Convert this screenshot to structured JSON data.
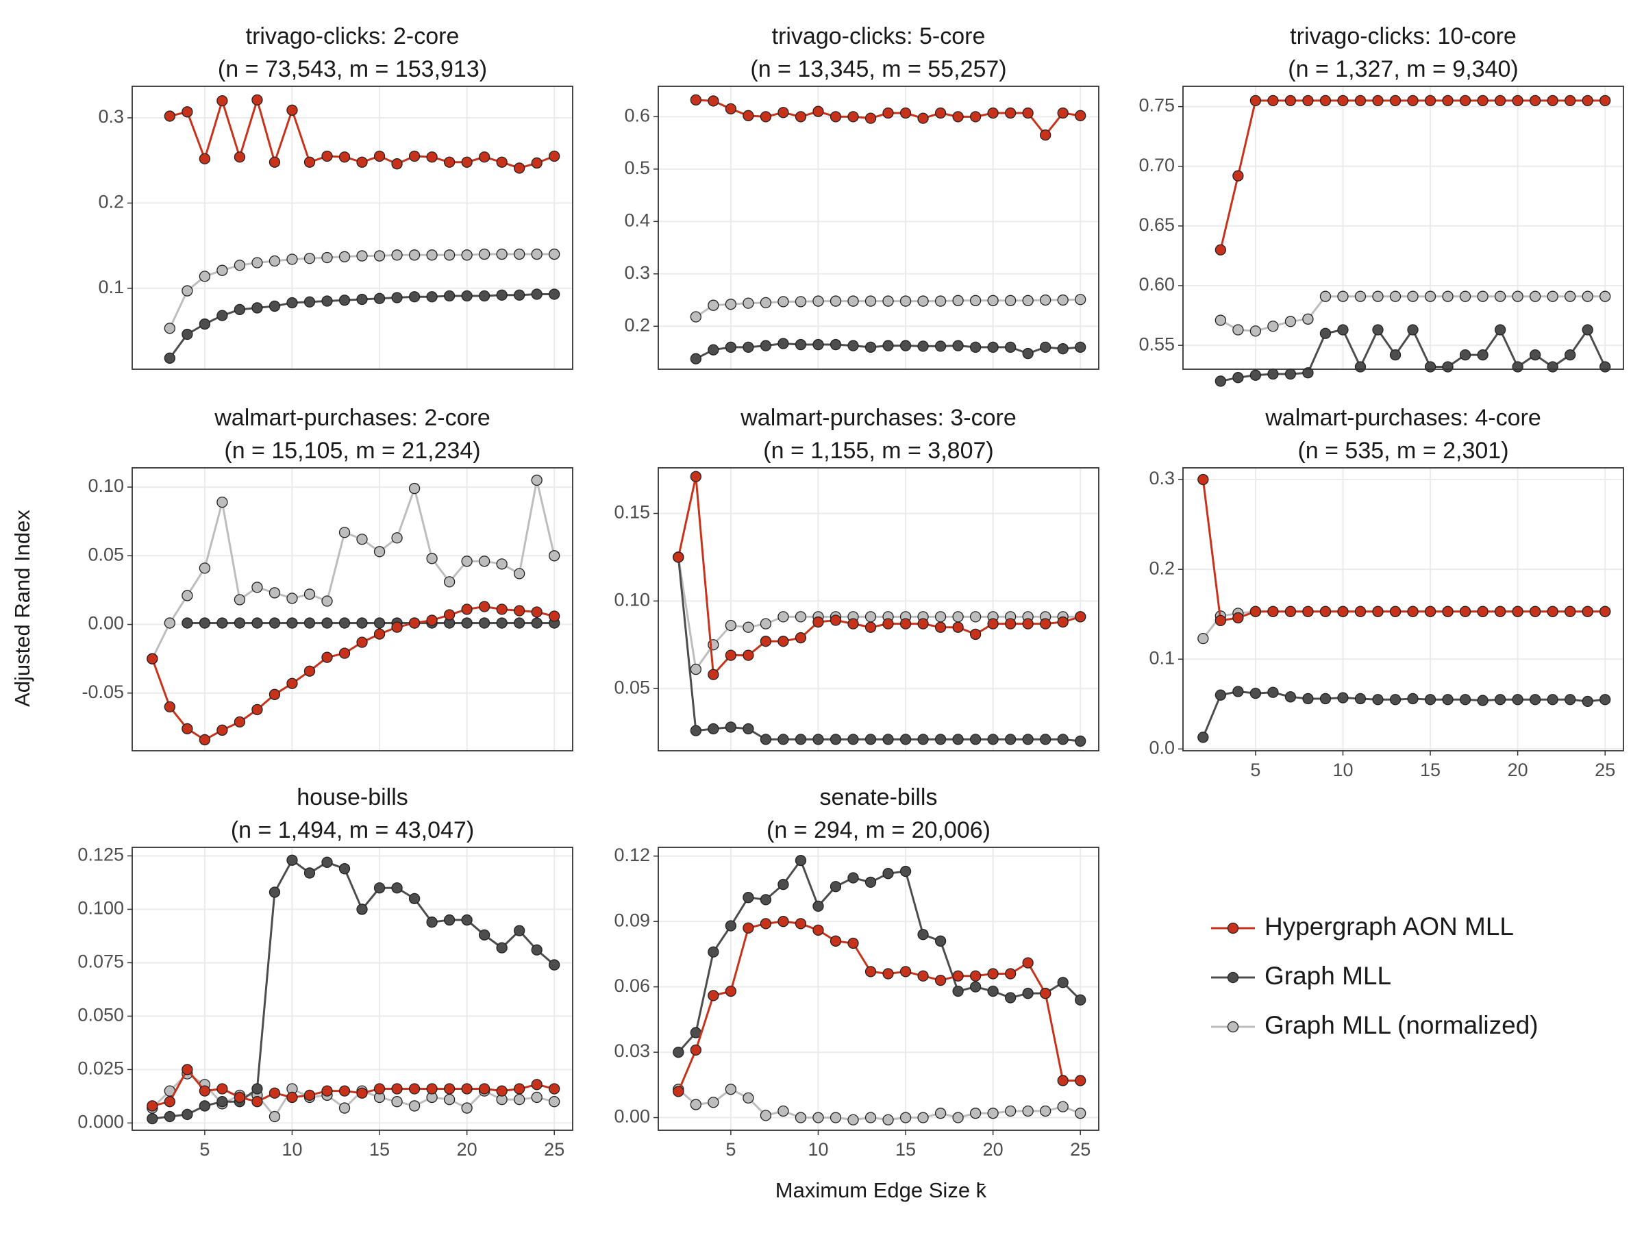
{
  "y_label": "Adjusted Rand Index",
  "x_label": "Maximum Edge Size k̄",
  "legend": [
    {
      "name": "Hypergraph AON MLL",
      "color": "#c8321a"
    },
    {
      "name": "Graph MLL",
      "color": "#4d4d4d"
    },
    {
      "name": "Graph MLL (normalized)",
      "color": "#bdbdbd"
    }
  ],
  "chart_data": [
    {
      "type": "line",
      "title": "trivago-clicks: 2-core",
      "subtitle": "(n = 73,543, m = 153,913)",
      "grid": true,
      "xtick_labels": false,
      "x": [
        3,
        4,
        5,
        6,
        7,
        8,
        9,
        10,
        11,
        12,
        13,
        14,
        15,
        16,
        17,
        18,
        19,
        20,
        21,
        22,
        23,
        24,
        25
      ],
      "xlim": [
        0.85,
        26.05
      ],
      "xticks": [
        5,
        10,
        15,
        20,
        25
      ],
      "ylim": [
        0.005,
        0.337
      ],
      "yticks": [
        0.1,
        0.2,
        0.3
      ],
      "series": [
        {
          "values": [
            0.302,
            0.307,
            0.252,
            0.32,
            0.254,
            0.321,
            0.248,
            0.309,
            0.248,
            0.255,
            0.254,
            0.248,
            0.255,
            0.246,
            0.255,
            0.254,
            0.248,
            0.248,
            0.254,
            0.248,
            0.241,
            0.247,
            0.255
          ]
        },
        {
          "values": [
            0.018,
            0.046,
            0.058,
            0.068,
            0.075,
            0.077,
            0.079,
            0.083,
            0.084,
            0.085,
            0.086,
            0.087,
            0.088,
            0.089,
            0.09,
            0.09,
            0.091,
            0.091,
            0.091,
            0.092,
            0.092,
            0.093,
            0.093
          ]
        },
        {
          "values": [
            0.053,
            0.097,
            0.114,
            0.121,
            0.127,
            0.13,
            0.132,
            0.134,
            0.135,
            0.136,
            0.137,
            0.138,
            0.138,
            0.139,
            0.139,
            0.139,
            0.139,
            0.139,
            0.14,
            0.14,
            0.14,
            0.14,
            0.14
          ]
        }
      ]
    },
    {
      "type": "line",
      "title": "trivago-clicks: 5-core",
      "subtitle": "(n = 13,345, m = 55,257)",
      "grid": true,
      "xtick_labels": false,
      "x": [
        3,
        4,
        5,
        6,
        7,
        8,
        9,
        10,
        11,
        12,
        13,
        14,
        15,
        16,
        17,
        18,
        19,
        20,
        21,
        22,
        23,
        24,
        25
      ],
      "xlim": [
        0.85,
        26.05
      ],
      "xticks": [
        5,
        10,
        15,
        20,
        25
      ],
      "ylim": [
        0.118,
        0.658
      ],
      "yticks": [
        0.2,
        0.3,
        0.4,
        0.5,
        0.6
      ],
      "series": [
        {
          "values": [
            0.632,
            0.63,
            0.615,
            0.602,
            0.6,
            0.608,
            0.6,
            0.61,
            0.6,
            0.6,
            0.597,
            0.607,
            0.607,
            0.597,
            0.607,
            0.6,
            0.6,
            0.607,
            0.607,
            0.607,
            0.565,
            0.607,
            0.602
          ]
        },
        {
          "values": [
            0.138,
            0.155,
            0.16,
            0.16,
            0.163,
            0.167,
            0.165,
            0.165,
            0.165,
            0.163,
            0.16,
            0.163,
            0.163,
            0.162,
            0.162,
            0.163,
            0.16,
            0.16,
            0.16,
            0.148,
            0.16,
            0.157,
            0.16
          ]
        },
        {
          "values": [
            0.218,
            0.24,
            0.242,
            0.244,
            0.245,
            0.247,
            0.247,
            0.248,
            0.248,
            0.248,
            0.248,
            0.248,
            0.248,
            0.248,
            0.248,
            0.249,
            0.249,
            0.249,
            0.249,
            0.249,
            0.25,
            0.25,
            0.251
          ]
        }
      ]
    },
    {
      "type": "line",
      "title": "trivago-clicks: 10-core",
      "subtitle": "(n = 1,327, m = 9,340)",
      "grid": true,
      "xtick_labels": false,
      "x": [
        3,
        4,
        5,
        6,
        7,
        8,
        9,
        10,
        11,
        12,
        13,
        14,
        15,
        16,
        17,
        18,
        19,
        20,
        21,
        22,
        23,
        24,
        25
      ],
      "xlim": [
        0.85,
        26.05
      ],
      "xticks": [
        5,
        10,
        15,
        20,
        25
      ],
      "ylim": [
        0.53,
        0.767
      ],
      "yticks": [
        0.55,
        {
          "value": 0.6,
          "label": "0.60"
        },
        0.65,
        {
          "value": 0.7,
          "label": "0.70"
        },
        0.75
      ],
      "series": [
        {
          "values": [
            0.63,
            0.692,
            0.755,
            0.755,
            0.755,
            0.755,
            0.755,
            0.755,
            0.755,
            0.755,
            0.755,
            0.755,
            0.755,
            0.755,
            0.755,
            0.755,
            0.755,
            0.755,
            0.755,
            0.755,
            0.755,
            0.755,
            0.755
          ]
        },
        {
          "values": [
            0.52,
            0.523,
            0.525,
            0.526,
            0.526,
            0.527,
            0.56,
            0.563,
            0.532,
            0.563,
            0.542,
            0.563,
            0.532,
            0.532,
            0.542,
            0.542,
            0.563,
            0.532,
            0.542,
            0.532,
            0.542,
            0.563,
            0.532
          ]
        },
        {
          "values": [
            0.571,
            0.563,
            0.562,
            0.566,
            0.57,
            0.572,
            0.591,
            0.591,
            0.591,
            0.591,
            0.591,
            0.591,
            0.591,
            0.591,
            0.591,
            0.591,
            0.591,
            0.591,
            0.591,
            0.591,
            0.591,
            0.591,
            0.591
          ]
        }
      ]
    },
    {
      "type": "line",
      "title": "walmart-purchases: 2-core",
      "subtitle": "(n = 15,105, m = 21,234)",
      "grid": true,
      "xtick_labels": false,
      "x": [
        2,
        3,
        4,
        5,
        6,
        7,
        8,
        9,
        10,
        11,
        12,
        13,
        14,
        15,
        16,
        17,
        18,
        19,
        20,
        21,
        22,
        23,
        24,
        25
      ],
      "xlim": [
        0.85,
        26.05
      ],
      "xticks": [
        5,
        10,
        15,
        20,
        25
      ],
      "ylim": [
        -0.092,
        0.114
      ],
      "yticks": [
        -0.05,
        {
          "value": 0,
          "label": "0.00"
        },
        0.05,
        {
          "value": 0.1,
          "label": "0.10"
        }
      ],
      "series": [
        {
          "values": [
            -0.025,
            -0.06,
            -0.076,
            -0.084,
            -0.077,
            -0.071,
            -0.062,
            -0.051,
            -0.043,
            -0.034,
            -0.024,
            -0.021,
            -0.013,
            -0.007,
            -0.002,
            0.001,
            0.003,
            0.007,
            0.011,
            0.013,
            0.011,
            0.01,
            0.009,
            0.006
          ]
        },
        {
          "values": [
            null,
            null,
            0.001,
            0.001,
            0.001,
            0.001,
            0.001,
            0.001,
            0.001,
            0.001,
            0.001,
            0.001,
            0.001,
            0.001,
            0.001,
            0.001,
            0.001,
            0.001,
            0.001,
            0.001,
            0.001,
            0.001,
            0.001,
            0.001
          ]
        },
        {
          "values": [
            -0.025,
            0.001,
            0.021,
            0.041,
            0.089,
            0.018,
            0.027,
            0.023,
            0.019,
            0.022,
            0.017,
            0.067,
            0.062,
            0.053,
            0.063,
            0.099,
            0.048,
            0.031,
            0.046,
            0.046,
            0.044,
            0.037,
            0.105,
            0.05
          ]
        }
      ]
    },
    {
      "type": "line",
      "title": "walmart-purchases: 3-core",
      "subtitle": "(n = 1,155, m = 3,807)",
      "grid": true,
      "xtick_labels": false,
      "x": [
        2,
        3,
        4,
        5,
        6,
        7,
        8,
        9,
        10,
        11,
        12,
        13,
        14,
        15,
        16,
        17,
        18,
        19,
        20,
        21,
        22,
        23,
        24,
        25
      ],
      "xlim": [
        0.85,
        26.05
      ],
      "xticks": [
        5,
        10,
        15,
        20,
        25
      ],
      "ylim": [
        0.0145,
        0.176
      ],
      "yticks": [
        0.05,
        {
          "value": 0.1,
          "label": "0.10"
        },
        0.15
      ],
      "series": [
        {
          "values": [
            0.125,
            0.171,
            0.058,
            0.069,
            0.069,
            0.077,
            0.077,
            0.079,
            0.088,
            0.089,
            0.087,
            0.085,
            0.087,
            0.087,
            0.087,
            0.085,
            0.085,
            0.081,
            0.087,
            0.087,
            0.087,
            0.087,
            0.088,
            0.091
          ]
        },
        {
          "values": [
            0.125,
            0.026,
            0.027,
            0.028,
            0.027,
            0.021,
            0.021,
            0.021,
            0.021,
            0.021,
            0.021,
            0.021,
            0.021,
            0.021,
            0.021,
            0.021,
            0.021,
            0.021,
            0.021,
            0.021,
            0.021,
            0.021,
            0.021,
            0.02
          ]
        },
        {
          "values": [
            0.125,
            0.061,
            0.075,
            0.086,
            0.085,
            0.087,
            0.091,
            0.091,
            0.091,
            0.091,
            0.091,
            0.091,
            0.091,
            0.091,
            0.091,
            0.091,
            0.091,
            0.091,
            0.091,
            0.091,
            0.091,
            0.091,
            0.091,
            0.091
          ]
        }
      ]
    },
    {
      "type": "line",
      "title": "walmart-purchases: 4-core",
      "subtitle": "(n = 535, m = 2,301)",
      "grid": true,
      "xtick_labels": true,
      "x": [
        2,
        3,
        4,
        5,
        6,
        7,
        8,
        9,
        10,
        11,
        12,
        13,
        14,
        15,
        16,
        17,
        18,
        19,
        20,
        21,
        22,
        23,
        24,
        25
      ],
      "xlim": [
        0.85,
        26.05
      ],
      "xticks": [
        5,
        10,
        15,
        20,
        25
      ],
      "ylim": [
        -0.002,
        0.313
      ],
      "yticks": [
        {
          "value": 0,
          "label": "0.0"
        },
        0.1,
        0.2,
        0.3
      ],
      "series": [
        {
          "values": [
            0.3,
            0.143,
            0.146,
            0.153,
            0.153,
            0.153,
            0.153,
            0.153,
            0.153,
            0.153,
            0.153,
            0.153,
            0.153,
            0.153,
            0.153,
            0.153,
            0.153,
            0.153,
            0.153,
            0.153,
            0.153,
            0.153,
            0.153,
            0.153
          ]
        },
        {
          "values": [
            0.013,
            0.06,
            0.064,
            0.062,
            0.063,
            0.058,
            0.056,
            0.056,
            0.057,
            0.056,
            0.055,
            0.055,
            0.056,
            0.055,
            0.055,
            0.055,
            0.054,
            0.055,
            0.055,
            0.055,
            0.055,
            0.055,
            0.053,
            0.055
          ]
        },
        {
          "values": [
            0.123,
            0.148,
            0.151,
            0.153,
            0.153,
            0.153,
            0.153,
            0.153,
            0.153,
            0.153,
            0.153,
            0.153,
            0.153,
            0.153,
            0.153,
            0.153,
            0.153,
            0.153,
            0.153,
            0.153,
            0.153,
            0.153,
            0.153,
            0.153
          ]
        }
      ]
    },
    {
      "type": "line",
      "title": "house-bills",
      "subtitle": "(n = 1,494, m = 43,047)",
      "grid": true,
      "xtick_labels": true,
      "x": [
        2,
        3,
        4,
        5,
        6,
        7,
        8,
        9,
        10,
        11,
        12,
        13,
        14,
        15,
        16,
        17,
        18,
        19,
        20,
        21,
        22,
        23,
        24,
        25
      ],
      "xlim": [
        0.85,
        26.05
      ],
      "xticks": [
        5,
        10,
        15,
        20,
        25
      ],
      "ylim": [
        -0.0034,
        0.129
      ],
      "yticks": [
        {
          "value": 0,
          "label": "0.000"
        },
        0.025,
        {
          "value": 0.05,
          "label": "0.050"
        },
        0.075,
        {
          "value": 0.1,
          "label": "0.100"
        },
        0.125
      ],
      "series": [
        {
          "values": [
            0.008,
            0.01,
            0.025,
            0.015,
            0.016,
            0.012,
            0.01,
            0.014,
            0.012,
            0.013,
            0.015,
            0.015,
            0.014,
            0.016,
            0.016,
            0.016,
            0.016,
            0.016,
            0.016,
            0.016,
            0.015,
            0.016,
            0.018,
            0.016
          ]
        },
        {
          "values": [
            0.002,
            0.003,
            0.004,
            0.008,
            0.01,
            0.01,
            0.016,
            0.108,
            0.123,
            0.117,
            0.122,
            0.119,
            0.1,
            0.11,
            0.11,
            0.105,
            0.094,
            0.095,
            0.095,
            0.088,
            0.082,
            0.09,
            0.081,
            0.074
          ]
        },
        {
          "values": [
            0.007,
            0.015,
            0.023,
            0.018,
            0.009,
            0.013,
            0.013,
            0.003,
            0.016,
            0.012,
            0.013,
            0.007,
            0.015,
            0.012,
            0.01,
            0.008,
            0.012,
            0.011,
            0.007,
            0.015,
            0.011,
            0.011,
            0.012,
            0.01
          ]
        }
      ]
    },
    {
      "type": "line",
      "title": "senate-bills",
      "subtitle": "(n = 294, m = 20,006)",
      "grid": true,
      "xtick_labels": true,
      "x": [
        2,
        3,
        4,
        5,
        6,
        7,
        8,
        9,
        10,
        11,
        12,
        13,
        14,
        15,
        16,
        17,
        18,
        19,
        20,
        21,
        22,
        23,
        24,
        25
      ],
      "xlim": [
        0.85,
        26.05
      ],
      "xticks": [
        5,
        10,
        15,
        20,
        25
      ],
      "ylim": [
        -0.0058,
        0.124
      ],
      "yticks": [
        {
          "value": 0,
          "label": "0.00"
        },
        0.03,
        0.06,
        0.09,
        {
          "value": 0.12,
          "label": "0.12"
        }
      ],
      "series": [
        {
          "values": [
            0.012,
            0.031,
            0.056,
            0.058,
            0.087,
            0.089,
            0.09,
            0.089,
            0.086,
            0.081,
            0.08,
            0.067,
            0.066,
            0.067,
            0.065,
            0.063,
            0.065,
            0.065,
            0.066,
            0.066,
            0.071,
            0.057,
            0.017,
            0.017
          ]
        },
        {
          "values": [
            0.03,
            0.039,
            0.076,
            0.088,
            0.101,
            0.1,
            0.107,
            0.118,
            0.097,
            0.106,
            0.11,
            0.108,
            0.112,
            0.113,
            0.084,
            0.081,
            0.058,
            0.06,
            0.058,
            0.055,
            0.057,
            0.057,
            0.062,
            0.054
          ]
        },
        {
          "values": [
            0.013,
            0.006,
            0.007,
            0.013,
            0.009,
            0.001,
            0.003,
            0.0,
            0.0,
            0.0,
            -0.001,
            0.0,
            -0.001,
            0.0,
            0.0,
            0.002,
            0.0,
            0.002,
            0.002,
            0.003,
            0.003,
            0.003,
            0.005,
            0.002
          ]
        }
      ]
    }
  ]
}
